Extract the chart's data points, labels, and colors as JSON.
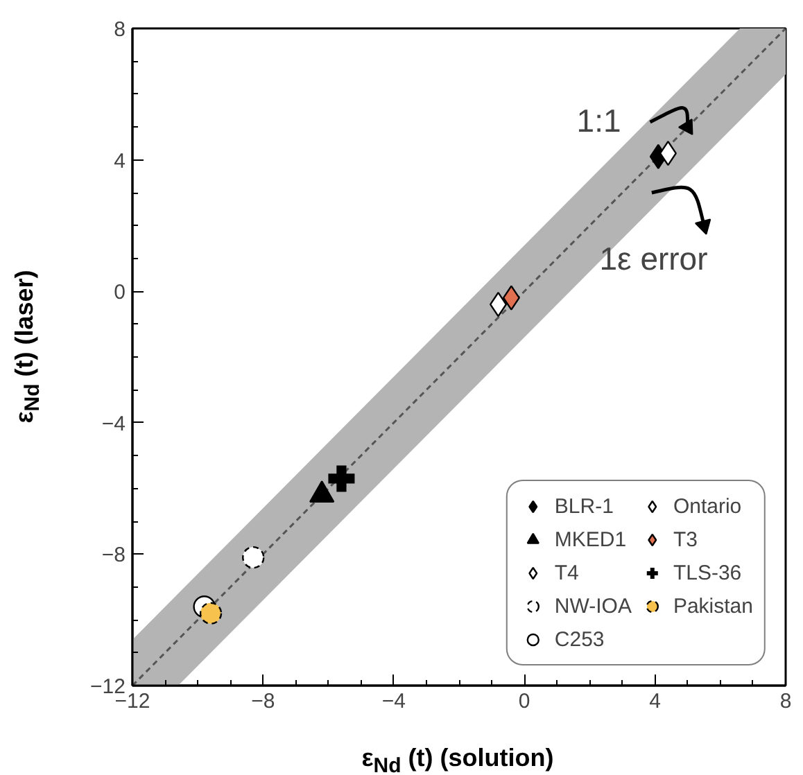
{
  "chart_data": {
    "type": "scatter",
    "xlabel": "ε$_{Nd}$ (t) (solution)",
    "ylabel": "ε$_{Nd}$ (t) (laser)",
    "xlim": [
      -12,
      8
    ],
    "ylim": [
      -12,
      8
    ],
    "xticks": [
      -12,
      -8,
      -4,
      0,
      4,
      8
    ],
    "yticks": [
      -12,
      -8,
      -4,
      0,
      4,
      8
    ],
    "grid": false,
    "legend": "bottom right",
    "annotations": [
      {
        "text": "1:1",
        "x": 5.0,
        "y": 5.0
      },
      {
        "text": "1ε error",
        "x": 4.0,
        "y": 2.6
      }
    ],
    "series": [
      {
        "type": "line",
        "color": "#555555",
        "line_style": "dashed",
        "marker": "none",
        "x": [
          -12,
          -10.6,
          6.6,
          8
        ],
        "values": [
          -12,
          -10.6,
          6.6,
          8
        ],
        "lower": [
          -12,
          -12,
          5.2,
          6.6
        ],
        "upper": [
          -10.6,
          -9.2,
          8,
          8
        ]
      },
      {
        "name": "BLR-1",
        "color": "#000000",
        "marker": "diamond",
        "x": [
          4.1
        ],
        "values": [
          4.1
        ]
      },
      {
        "name": "MKED1",
        "color": "#000000",
        "marker": "triangle",
        "x": [
          -6.2
        ],
        "values": [
          -6.2
        ]
      },
      {
        "name": "T4",
        "color": "#ffffff",
        "marker": "diamond",
        "x": [
          -0.8
        ],
        "values": [
          -0.4
        ]
      },
      {
        "name": "NW-IOA",
        "color": "#ffffff",
        "marker": "circle",
        "line_style": "dashed",
        "x": [
          -8.3
        ],
        "values": [
          -8.1
        ]
      },
      {
        "name": "C253",
        "color": "#ffffff",
        "marker": "circle",
        "x": [
          -9.8
        ],
        "values": [
          -9.6
        ]
      },
      {
        "name": "Ontario",
        "color": "#ffffff",
        "marker": "diamond",
        "x": [
          4.4
        ],
        "values": [
          4.2
        ]
      },
      {
        "name": "T3",
        "color": "#e0704f",
        "marker": "diamond",
        "x": [
          -0.4
        ],
        "values": [
          -0.2
        ]
      },
      {
        "name": "TLS-36",
        "color": "#000000",
        "marker": "cross",
        "x": [
          -5.6
        ],
        "values": [
          -5.7
        ]
      },
      {
        "name": "Pakistan",
        "color": "#f8c24e",
        "marker": "circle",
        "line_style": "dashed",
        "x": [
          -9.6
        ],
        "values": [
          -9.8
        ]
      }
    ]
  }
}
